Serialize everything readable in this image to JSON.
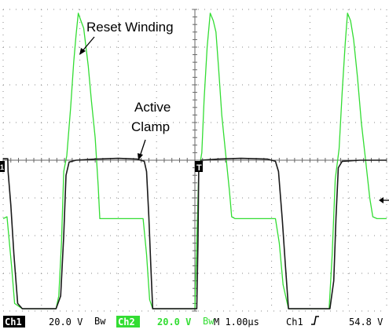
{
  "chart_data": {
    "type": "line",
    "title": "",
    "xlabel": "",
    "ylabel": "",
    "grid": true,
    "x_divisions": 10,
    "y_divisions": 8,
    "xlim": [
      0,
      10
    ],
    "ylim": [
      -4,
      4
    ],
    "series": [
      {
        "channel": "Ch1",
        "color": "#1a1a1a",
        "points": [
          [
            0,
            0.04
          ],
          [
            0.12,
            0.04
          ],
          [
            0.13,
            -0.3
          ],
          [
            0.2,
            -1.2
          ],
          [
            0.28,
            -2.5
          ],
          [
            0.38,
            -3.8
          ],
          [
            0.5,
            -3.94
          ],
          [
            1.38,
            -3.94
          ],
          [
            1.5,
            -3.6
          ],
          [
            1.58,
            -2.0
          ],
          [
            1.64,
            -0.4
          ],
          [
            1.72,
            -0.05
          ],
          [
            1.9,
            0.0
          ],
          [
            2.4,
            0.03
          ],
          [
            3.0,
            0.05
          ],
          [
            3.5,
            0.03
          ],
          [
            3.68,
            -0.03
          ],
          [
            3.74,
            -0.3
          ],
          [
            3.8,
            -1.5
          ],
          [
            3.85,
            -2.8
          ],
          [
            3.9,
            -3.94
          ],
          [
            5.05,
            -3.94
          ],
          [
            5.08,
            -2.2
          ],
          [
            5.1,
            -0.2
          ],
          [
            5.16,
            0.0
          ],
          [
            5.6,
            0.03
          ],
          [
            6.2,
            0.05
          ],
          [
            6.9,
            0.03
          ],
          [
            7.1,
            -0.03
          ],
          [
            7.18,
            -0.3
          ],
          [
            7.28,
            -1.6
          ],
          [
            7.36,
            -2.8
          ],
          [
            7.44,
            -3.94
          ],
          [
            8.52,
            -3.94
          ],
          [
            8.62,
            -3.2
          ],
          [
            8.68,
            -1.5
          ],
          [
            8.74,
            -0.2
          ],
          [
            8.84,
            -0.03
          ],
          [
            9.3,
            0.0
          ],
          [
            10.0,
            0.0
          ]
        ]
      },
      {
        "channel": "Ch2",
        "color": "#33dd33",
        "points": [
          [
            0,
            -1.55
          ],
          [
            0.1,
            -1.5
          ],
          [
            0.22,
            -2.8
          ],
          [
            0.3,
            -3.8
          ],
          [
            0.5,
            -3.94
          ],
          [
            1.38,
            -3.94
          ],
          [
            1.45,
            -3.6
          ],
          [
            1.52,
            -2.2
          ],
          [
            1.58,
            -0.3
          ],
          [
            1.66,
            0.12
          ],
          [
            1.76,
            1.4
          ],
          [
            1.84,
            2.6
          ],
          [
            1.9,
            3.3
          ],
          [
            1.96,
            3.9
          ],
          [
            2.02,
            3.72
          ],
          [
            2.1,
            3.5
          ],
          [
            2.22,
            2.5
          ],
          [
            2.3,
            1.6
          ],
          [
            2.4,
            0.6
          ],
          [
            2.48,
            -0.7
          ],
          [
            2.52,
            -1.55
          ],
          [
            3.65,
            -1.55
          ],
          [
            3.74,
            -2.5
          ],
          [
            3.82,
            -3.7
          ],
          [
            3.9,
            -3.94
          ],
          [
            5.0,
            -3.94
          ],
          [
            5.06,
            -1.8
          ],
          [
            5.1,
            -0.3
          ],
          [
            5.18,
            0.2
          ],
          [
            5.24,
            1.6
          ],
          [
            5.32,
            3.0
          ],
          [
            5.4,
            3.9
          ],
          [
            5.48,
            3.7
          ],
          [
            5.55,
            3.4
          ],
          [
            5.62,
            2.4
          ],
          [
            5.7,
            1.2
          ],
          [
            5.8,
            0.2
          ],
          [
            5.9,
            -0.8
          ],
          [
            5.96,
            -1.5
          ],
          [
            6.05,
            -1.55
          ],
          [
            7.1,
            -1.55
          ],
          [
            7.2,
            -2.2
          ],
          [
            7.3,
            -3.3
          ],
          [
            7.44,
            -3.94
          ],
          [
            8.5,
            -3.94
          ],
          [
            8.58,
            -2.5
          ],
          [
            8.66,
            -0.5
          ],
          [
            8.76,
            0.3
          ],
          [
            8.84,
            1.8
          ],
          [
            8.92,
            3.1
          ],
          [
            8.98,
            3.9
          ],
          [
            9.06,
            3.7
          ],
          [
            9.14,
            3.2
          ],
          [
            9.24,
            2.2
          ],
          [
            9.34,
            1.0
          ],
          [
            9.44,
            0.1
          ],
          [
            9.56,
            -1.0
          ],
          [
            9.64,
            -1.5
          ],
          [
            9.75,
            -1.55
          ],
          [
            10.0,
            -1.55
          ]
        ]
      }
    ],
    "annotations": [
      {
        "text": "Reset Winding",
        "lines": [
          "Reset Winding"
        ]
      },
      {
        "text": "Active Clamp",
        "lines": [
          "Active",
          "Clamp"
        ]
      }
    ],
    "markers": {
      "trigger_marker": "T",
      "ch1_ground_marker": "1"
    }
  },
  "status_bar": {
    "ch1_label": "Ch1",
    "ch1_scale": "20.0 V",
    "bw_symbol": "Bw",
    "ch2_label": "Ch2",
    "ch2_scale": "20.0 V",
    "timebase": "M 1.00µs",
    "trigger_source": "Ch1",
    "trigger_slope_icon": "rising-edge-icon",
    "trigger_level": "54.8 V"
  }
}
